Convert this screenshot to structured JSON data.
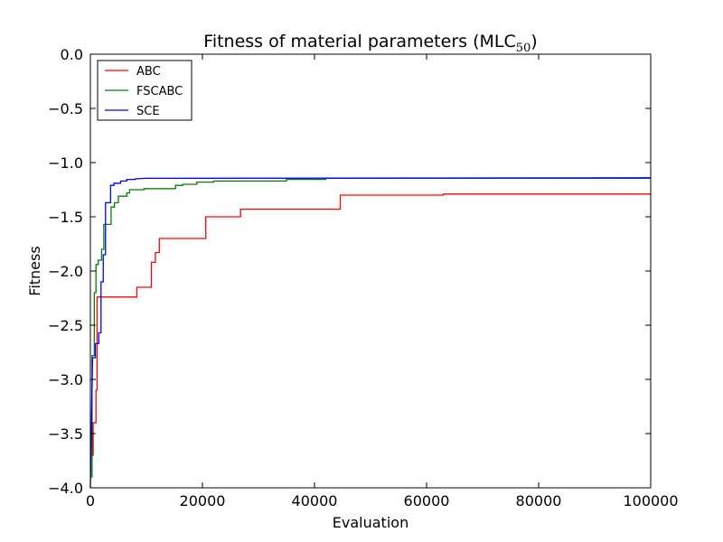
{
  "chart_data": {
    "type": "line",
    "title_main": "Fitness of material parameters (MLC",
    "title_sub": "50",
    "title_close": ")",
    "xlabel": "Evaluation",
    "ylabel": "Fitness",
    "xlim": [
      0,
      100000
    ],
    "ylim": [
      -4.0,
      0.0
    ],
    "xticks": [
      0,
      20000,
      40000,
      60000,
      80000,
      100000
    ],
    "xtick_labels": [
      "0",
      "20000",
      "40000",
      "60000",
      "80000",
      "100000"
    ],
    "yticks": [
      0.0,
      -0.5,
      -1.0,
      -1.5,
      -2.0,
      -2.5,
      -3.0,
      -3.5,
      -4.0
    ],
    "ytick_labels": [
      "0.0",
      "−0.5",
      "−1.0",
      "−1.5",
      "−2.0",
      "−2.5",
      "−3.0",
      "−3.5",
      "−4.0"
    ],
    "grid": false,
    "legend_position": "top-left",
    "series": [
      {
        "name": "ABC",
        "color": "#ff0000",
        "points": [
          [
            0,
            -3.7
          ],
          [
            500,
            -3.7
          ],
          [
            500,
            -3.4
          ],
          [
            1000,
            -3.4
          ],
          [
            1000,
            -3.1
          ],
          [
            1200,
            -3.1
          ],
          [
            1200,
            -2.24
          ],
          [
            8300,
            -2.24
          ],
          [
            8300,
            -2.15
          ],
          [
            10900,
            -2.15
          ],
          [
            10900,
            -1.92
          ],
          [
            11600,
            -1.92
          ],
          [
            11600,
            -1.83
          ],
          [
            12300,
            -1.83
          ],
          [
            12300,
            -1.7
          ],
          [
            20600,
            -1.7
          ],
          [
            20600,
            -1.5
          ],
          [
            26800,
            -1.5
          ],
          [
            26800,
            -1.43
          ],
          [
            44600,
            -1.43
          ],
          [
            44600,
            -1.3
          ],
          [
            63000,
            -1.3
          ],
          [
            63000,
            -1.29
          ],
          [
            100000,
            -1.29
          ]
        ]
      },
      {
        "name": "FSCABC",
        "color": "#008000",
        "points": [
          [
            0,
            -3.9
          ],
          [
            300,
            -3.9
          ],
          [
            300,
            -2.78
          ],
          [
            700,
            -2.78
          ],
          [
            700,
            -2.2
          ],
          [
            1000,
            -2.2
          ],
          [
            1000,
            -1.94
          ],
          [
            1400,
            -1.94
          ],
          [
            1400,
            -1.9
          ],
          [
            2000,
            -1.9
          ],
          [
            2000,
            -1.8
          ],
          [
            2400,
            -1.8
          ],
          [
            2400,
            -1.57
          ],
          [
            3700,
            -1.57
          ],
          [
            3700,
            -1.41
          ],
          [
            4300,
            -1.41
          ],
          [
            4300,
            -1.37
          ],
          [
            5000,
            -1.37
          ],
          [
            5000,
            -1.31
          ],
          [
            6500,
            -1.31
          ],
          [
            6500,
            -1.28
          ],
          [
            7000,
            -1.28
          ],
          [
            7000,
            -1.25
          ],
          [
            9600,
            -1.25
          ],
          [
            9600,
            -1.24
          ],
          [
            15200,
            -1.24
          ],
          [
            15200,
            -1.21
          ],
          [
            16500,
            -1.21
          ],
          [
            16500,
            -1.2
          ],
          [
            19000,
            -1.2
          ],
          [
            19000,
            -1.18
          ],
          [
            22000,
            -1.18
          ],
          [
            22000,
            -1.17
          ],
          [
            35000,
            -1.17
          ],
          [
            35000,
            -1.155
          ],
          [
            42000,
            -1.155
          ],
          [
            42000,
            -1.145
          ],
          [
            100000,
            -1.145
          ]
        ]
      },
      {
        "name": "SCE",
        "color": "#0000ff",
        "points": [
          [
            0,
            -4.0
          ],
          [
            200,
            -3.4
          ],
          [
            400,
            -2.8
          ],
          [
            900,
            -2.8
          ],
          [
            900,
            -2.67
          ],
          [
            1500,
            -2.67
          ],
          [
            1500,
            -2.57
          ],
          [
            1900,
            -2.57
          ],
          [
            1900,
            -2.1
          ],
          [
            2300,
            -2.1
          ],
          [
            2300,
            -1.85
          ],
          [
            2700,
            -1.85
          ],
          [
            2700,
            -1.37
          ],
          [
            3600,
            -1.37
          ],
          [
            3600,
            -1.21
          ],
          [
            4200,
            -1.21
          ],
          [
            4200,
            -1.19
          ],
          [
            5400,
            -1.19
          ],
          [
            5400,
            -1.17
          ],
          [
            6500,
            -1.17
          ],
          [
            6500,
            -1.155
          ],
          [
            8000,
            -1.155
          ],
          [
            8000,
            -1.15
          ],
          [
            10000,
            -1.145
          ],
          [
            100000,
            -1.14
          ]
        ]
      }
    ]
  }
}
